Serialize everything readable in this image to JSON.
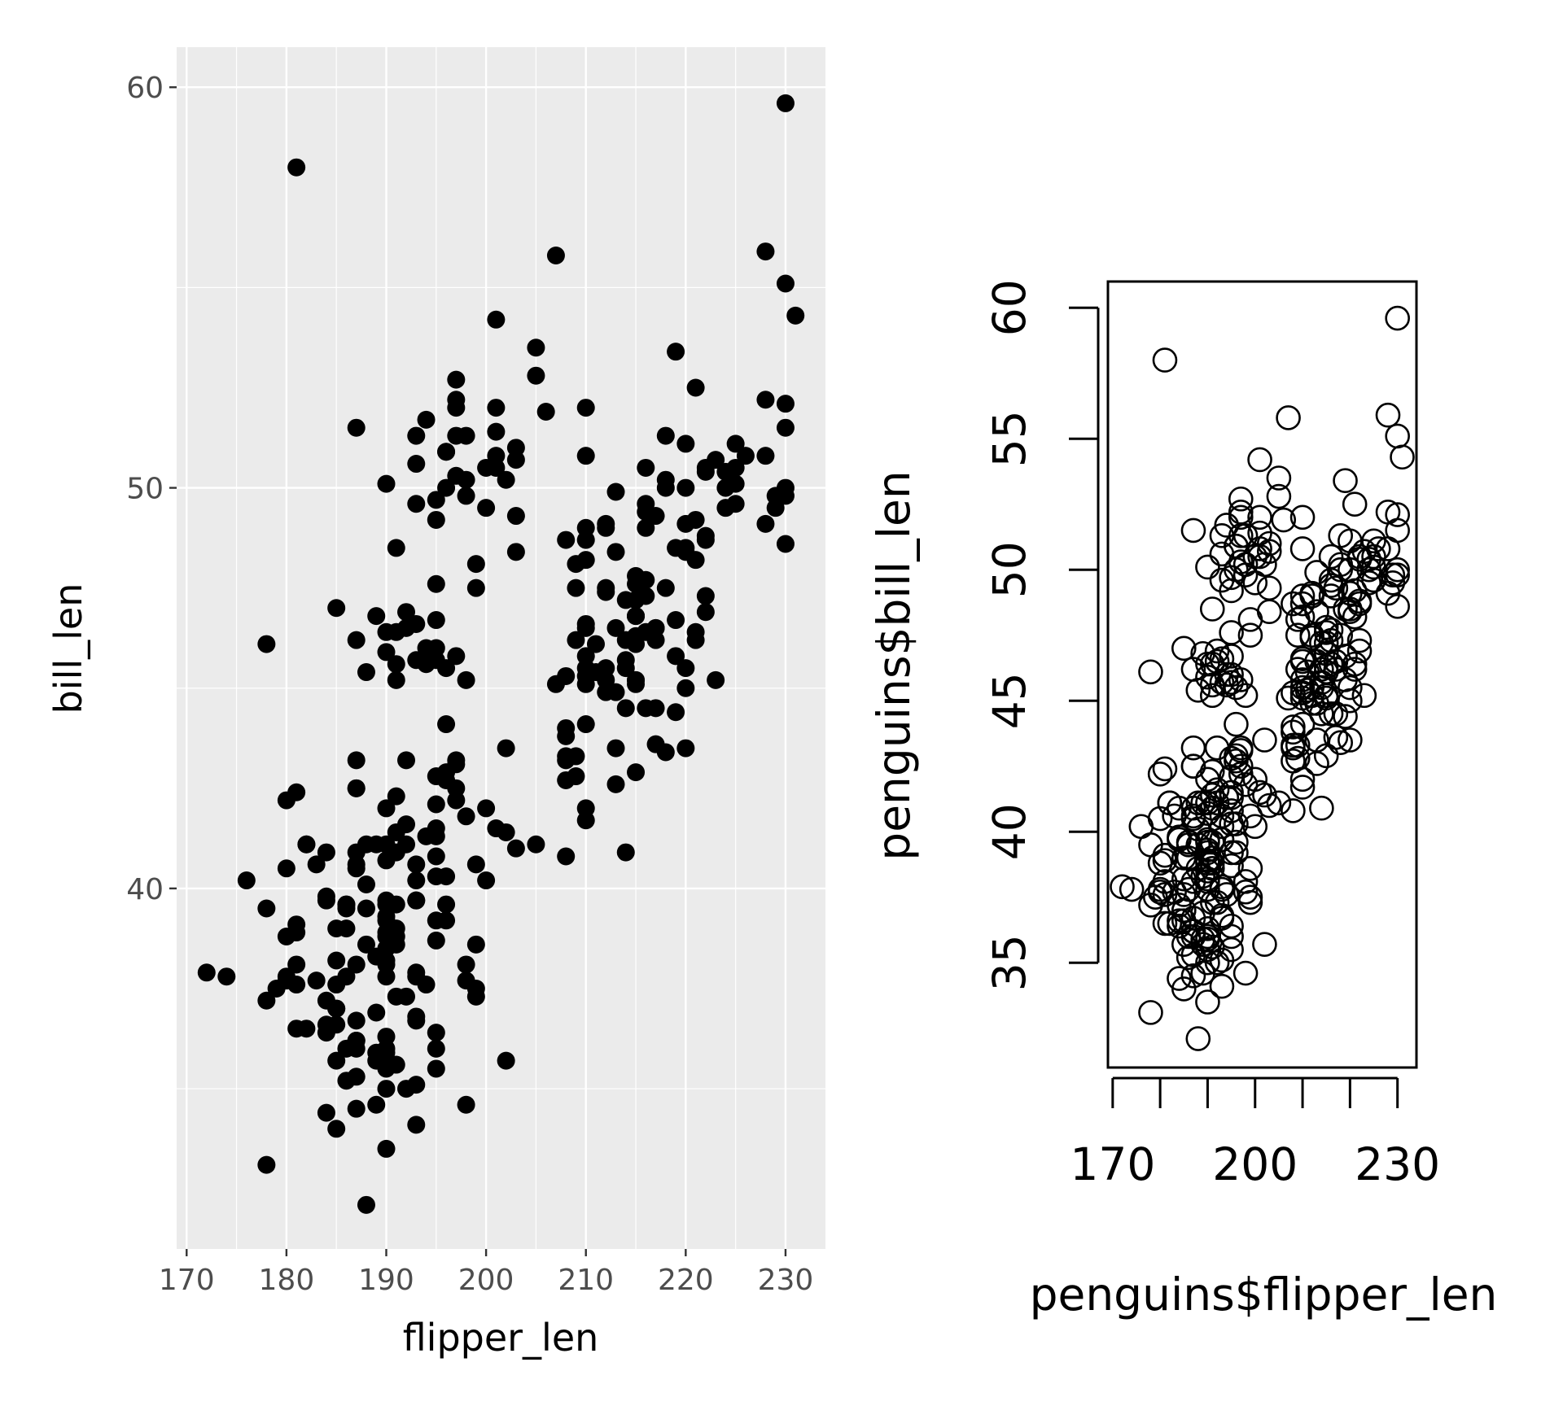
{
  "chart_data": [
    {
      "type": "scatter",
      "style": "ggplot2",
      "xlabel": "flipper_len",
      "ylabel": "bill_len",
      "xlim": [
        169,
        234
      ],
      "ylim": [
        31,
        61
      ],
      "xticks": [
        "170",
        "180",
        "190",
        "200",
        "210",
        "220",
        "230"
      ],
      "yticks": [
        "40",
        "50",
        "60"
      ],
      "grid": true,
      "background": "#ebebeb",
      "marker": "filled-circle",
      "marker_color": "#000000",
      "x": [
        181,
        186,
        195,
        193,
        190,
        181,
        195,
        193,
        190,
        186,
        180,
        182,
        191,
        198,
        185,
        195,
        197,
        184,
        194,
        174,
        180,
        189,
        185,
        180,
        187,
        183,
        187,
        172,
        180,
        178,
        178,
        188,
        184,
        195,
        196,
        190,
        180,
        181,
        184,
        182,
        195,
        186,
        196,
        185,
        190,
        182,
        179,
        190,
        191,
        186,
        188,
        190,
        200,
        187,
        191,
        186,
        193,
        181,
        194,
        185,
        195,
        185,
        192,
        184,
        192,
        195,
        188,
        190,
        198,
        190,
        190,
        196,
        197,
        190,
        195,
        191,
        184,
        187,
        195,
        189,
        196,
        187,
        193,
        191,
        194,
        190,
        189,
        189,
        190,
        202,
        205,
        185,
        186,
        187,
        208,
        190,
        196,
        178,
        192,
        192,
        203,
        183,
        190,
        193,
        184,
        199,
        190,
        181,
        197,
        198,
        191,
        193,
        197,
        191,
        196,
        188,
        199,
        189,
        189,
        187,
        198,
        176,
        202,
        186,
        199,
        191,
        195,
        191,
        210,
        190,
        197,
        193,
        199,
        187,
        190,
        191,
        200,
        185,
        193,
        193,
        187,
        188,
        190,
        192,
        185,
        190,
        184,
        195,
        193,
        187,
        201,
        211,
        230,
        210,
        218,
        215,
        210,
        211,
        219,
        209,
        215,
        214,
        216,
        214,
        213,
        210,
        217,
        210,
        221,
        209,
        222,
        218,
        215,
        213,
        215,
        215,
        215,
        216,
        215,
        210,
        220,
        222,
        209,
        207,
        230,
        220,
        220,
        213,
        219,
        208,
        208,
        208,
        225,
        210,
        216,
        222,
        217,
        210,
        225,
        213,
        215,
        210,
        220,
        210,
        225,
        217,
        220,
        208,
        220,
        208,
        224,
        208,
        221,
        214,
        231,
        219,
        230,
        214,
        229,
        220,
        223,
        216,
        221,
        221,
        217,
        216,
        230,
        209,
        220,
        215,
        223,
        212,
        221,
        212,
        224,
        212,
        228,
        218,
        218,
        212,
        230,
        218,
        228,
        212,
        224,
        214,
        226,
        216,
        222,
        203,
        225,
        219,
        228,
        215,
        228,
        216,
        215,
        210,
        219,
        208,
        209,
        216,
        229,
        213,
        230,
        217,
        230,
        217,
        222,
        214,
        215,
        222,
        212,
        213,
        192,
        196,
        193,
        188,
        197,
        198,
        178,
        197,
        195,
        198,
        193,
        194,
        185,
        201,
        190,
        201,
        197,
        181,
        190,
        195,
        181,
        191,
        187,
        193,
        195,
        197,
        200,
        200,
        191,
        205,
        187,
        201,
        187,
        203,
        195,
        199,
        195,
        210,
        192,
        205,
        210,
        187,
        196,
        196,
        196,
        201,
        190,
        212,
        187,
        198,
        199,
        201,
        193,
        203,
        187,
        197,
        191,
        203,
        202,
        194,
        206,
        189,
        195,
        207,
        202,
        193,
        210,
        198
      ],
      "y": [
        39.1,
        39.5,
        40.3,
        36.7,
        39.3,
        38.9,
        39.2,
        34.1,
        42.0,
        37.8,
        37.8,
        41.1,
        38.6,
        34.6,
        36.6,
        38.7,
        42.5,
        34.4,
        46.0,
        37.8,
        37.7,
        35.9,
        38.2,
        38.8,
        35.3,
        40.6,
        40.5,
        37.9,
        40.5,
        39.5,
        37.2,
        39.5,
        40.9,
        36.4,
        39.2,
        38.8,
        42.2,
        37.6,
        39.8,
        36.5,
        40.8,
        36.0,
        44.1,
        37.0,
        39.6,
        41.1,
        37.5,
        36.0,
        42.3,
        39.6,
        40.1,
        35.0,
        42.0,
        34.5,
        41.4,
        39.0,
        40.6,
        36.5,
        37.6,
        35.7,
        41.3,
        37.6,
        41.1,
        36.4,
        41.6,
        35.5,
        41.1,
        35.9,
        41.8,
        33.5,
        39.7,
        39.6,
        45.8,
        35.5,
        42.8,
        40.9,
        37.2,
        36.2,
        42.1,
        34.6,
        42.9,
        36.7,
        35.1,
        37.3,
        41.3,
        36.3,
        36.9,
        38.3,
        38.9,
        35.7,
        41.1,
        34.0,
        39.6,
        36.2,
        40.8,
        38.1,
        40.3,
        33.1,
        43.2,
        35.0,
        41.0,
        37.7,
        37.8,
        37.9,
        39.7,
        38.6,
        38.2,
        38.1,
        43.2,
        38.1,
        45.6,
        39.7,
        42.2,
        39.6,
        42.7,
        38.6,
        37.3,
        35.7,
        41.1,
        36.2,
        37.7,
        40.2,
        41.4,
        35.2,
        40.6,
        38.8,
        41.5,
        39.0,
        44.1,
        38.5,
        43.1,
        36.8,
        37.5,
        38.1,
        41.1,
        35.6,
        40.2,
        37.0,
        39.7,
        40.2,
        40.6,
        32.1,
        40.7,
        37.3,
        39.0,
        39.2,
        36.6,
        36.0,
        37.8,
        36.0,
        41.5,
        46.1,
        50.0,
        48.7,
        50.0,
        47.6,
        46.5,
        45.4,
        46.7,
        43.3,
        46.8,
        40.9,
        49.0,
        45.5,
        48.4,
        45.8,
        49.3,
        42.0,
        49.2,
        46.2,
        48.7,
        50.2,
        45.1,
        46.5,
        46.3,
        42.9,
        46.1,
        44.5,
        47.8,
        48.2,
        50.0,
        47.3,
        42.8,
        45.1,
        59.6,
        49.1,
        48.4,
        42.6,
        44.4,
        44.0,
        48.7,
        42.7,
        49.6,
        45.3,
        49.6,
        50.5,
        43.6,
        45.5,
        50.5,
        44.9,
        45.2,
        46.6,
        48.5,
        45.1,
        50.1,
        46.5,
        45.0,
        43.8,
        45.5,
        43.2,
        50.4,
        45.3,
        46.2,
        45.7,
        54.3,
        45.8,
        49.8,
        46.2,
        49.5,
        43.5,
        50.7,
        47.7,
        46.4,
        48.2,
        46.5,
        46.4,
        48.6,
        47.5,
        51.1,
        45.2,
        45.2,
        49.1,
        52.5,
        47.4,
        50.0,
        44.9,
        50.8,
        43.4,
        51.3,
        47.5,
        52.1,
        47.5,
        52.2,
        45.5,
        49.5,
        44.5,
        50.8,
        49.4,
        46.9,
        48.4,
        51.1,
        48.5,
        55.9,
        47.2,
        49.1,
        47.3,
        46.8,
        41.7,
        53.4,
        43.3,
        48.1,
        50.5,
        49.8,
        43.5,
        51.5,
        46.2,
        55.1,
        44.5,
        48.8,
        47.2,
        46.8,
        50.4,
        45.2,
        49.9,
        46.5,
        50.0,
        51.3,
        45.4,
        52.7,
        45.2,
        46.1,
        51.3,
        46.0,
        51.3,
        46.6,
        51.7,
        47.0,
        52.0,
        45.9,
        50.5,
        50.3,
        58.0,
        46.4,
        49.2,
        42.4,
        48.5,
        43.2,
        50.6,
        46.7,
        52.0,
        50.5,
        49.5,
        46.4,
        52.8,
        40.9,
        54.2,
        42.5,
        51.0,
        49.7,
        47.5,
        47.6,
        52.0,
        46.9,
        53.5,
        49.0,
        46.2,
        50.9,
        45.5,
        50.9,
        50.8,
        50.1,
        49.0,
        51.5,
        49.8,
        48.1,
        51.4,
        45.7,
        50.7,
        42.5,
        52.2,
        45.2,
        49.3,
        50.2,
        45.6,
        51.9,
        46.8,
        45.7,
        55.8,
        43.5,
        49.6,
        50.8,
        50.2
      ]
    },
    {
      "type": "scatter",
      "style": "base-r",
      "xlabel": "penguins$flipper_len",
      "ylabel": "penguins$bill_len",
      "xlim": [
        169,
        234
      ],
      "ylim": [
        31,
        61
      ],
      "xticks": [
        "170",
        "200",
        "230"
      ],
      "yticks": [
        "35",
        "40",
        "45",
        "50",
        "55",
        "60"
      ],
      "grid": false,
      "marker": "open-circle",
      "marker_color": "#000000"
    }
  ]
}
